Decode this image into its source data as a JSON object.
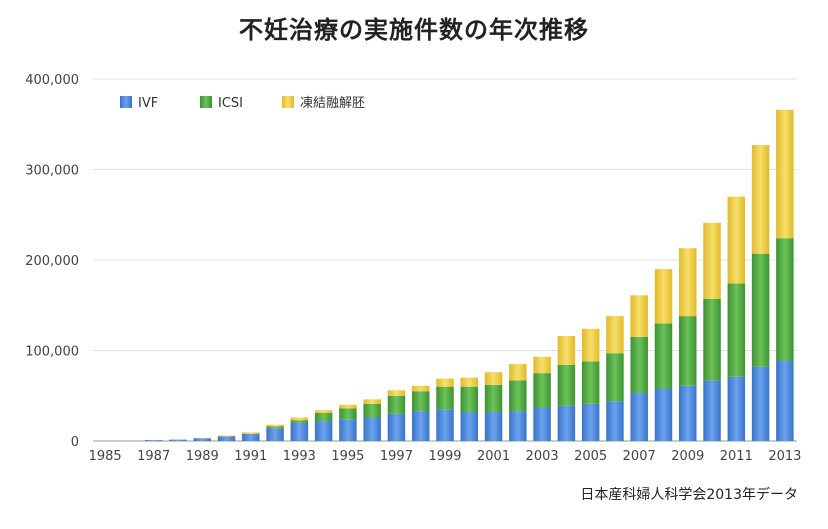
{
  "chart_data": {
    "type": "bar",
    "stacked": true,
    "title": "不妊治療の実施件数の年次推移",
    "source": "日本産科婦人科学会2013年データ",
    "xlabel": "",
    "ylabel": "",
    "ylim": [
      0,
      400000
    ],
    "yticks": [
      "0",
      "100,000",
      "200,000",
      "300,000",
      "400,000"
    ],
    "ytick_values": [
      0,
      100000,
      200000,
      300000,
      400000
    ],
    "grid": true,
    "legend_position": "top-left",
    "categories": [
      "1985",
      "1986",
      "1987",
      "1988",
      "1989",
      "1990",
      "1991",
      "1992",
      "1993",
      "1994",
      "1995",
      "1996",
      "1997",
      "1998",
      "1999",
      "2000",
      "2001",
      "2002",
      "2003",
      "2004",
      "2005",
      "2006",
      "2007",
      "2008",
      "2009",
      "2010",
      "2011",
      "2012",
      "2013"
    ],
    "xtick_labels": [
      "1985",
      "1987",
      "1989",
      "1991",
      "1993",
      "1995",
      "1997",
      "1999",
      "2001",
      "2003",
      "2005",
      "2007",
      "2009",
      "2011",
      "2013"
    ],
    "series": [
      {
        "name": "IVF",
        "color": "#4a86dc",
        "values": [
          0,
          0,
          1000,
          1500,
          3000,
          5000,
          8000,
          14000,
          20000,
          22000,
          24000,
          26000,
          30000,
          33000,
          35000,
          32000,
          32000,
          33000,
          37000,
          39000,
          41000,
          44000,
          53000,
          58000,
          61000,
          67000,
          71000,
          82000,
          89000
        ]
      },
      {
        "name": "ICSI",
        "color": "#4aa63e",
        "values": [
          0,
          0,
          0,
          0,
          0,
          0,
          0,
          2000,
          3000,
          9000,
          12000,
          15000,
          20000,
          22000,
          25000,
          28000,
          30000,
          34000,
          38000,
          45000,
          47000,
          53000,
          62000,
          72000,
          77000,
          90000,
          103000,
          125000,
          135000
        ]
      },
      {
        "name": "凍結融解胚",
        "color": "#eccb3e",
        "values": [
          0,
          0,
          0,
          0,
          500,
          1000,
          1500,
          2000,
          3000,
          3000,
          4000,
          5000,
          6000,
          6000,
          9000,
          10000,
          14000,
          18000,
          18000,
          32000,
          36000,
          41000,
          46000,
          60000,
          75000,
          84000,
          96000,
          120000,
          142000
        ]
      }
    ]
  }
}
